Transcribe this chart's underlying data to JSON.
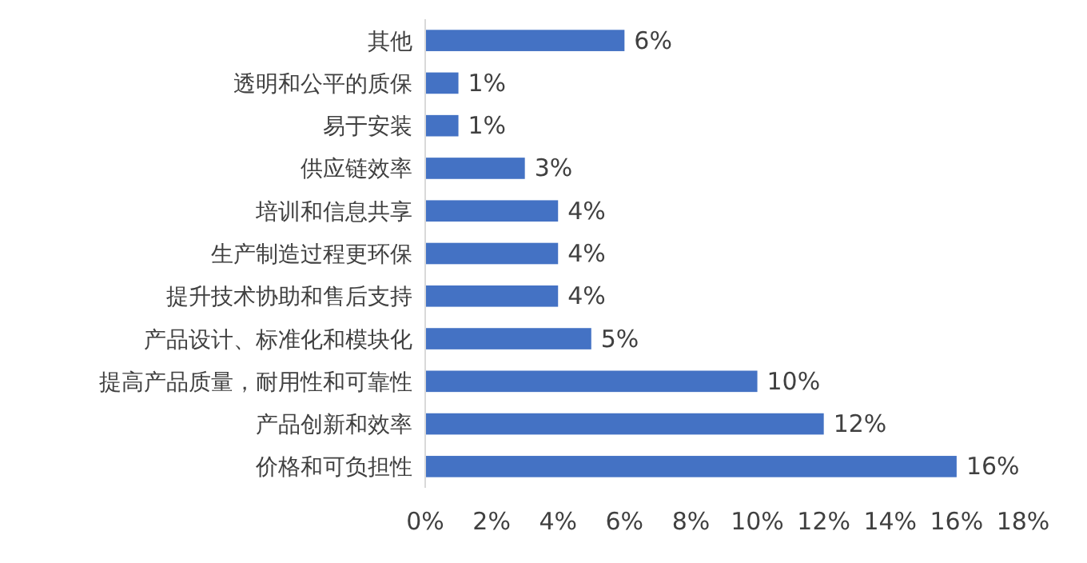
{
  "chart_data": {
    "type": "bar",
    "orientation": "horizontal",
    "categories": [
      "其他",
      "透明和公平的质保",
      "易于安装",
      "供应链效率",
      "培训和信息共享",
      "生产制造过程更环保",
      "提升技术协助和售后支持",
      "产品设计、标准化和模块化",
      "提高产品质量，耐用性和可靠性",
      "产品创新和效率",
      "价格和可负担性"
    ],
    "values": [
      6,
      1,
      1,
      3,
      4,
      4,
      4,
      5,
      10,
      12,
      16
    ],
    "value_labels": [
      "6%",
      "1%",
      "1%",
      "3%",
      "4%",
      "4%",
      "4%",
      "5%",
      "10%",
      "12%",
      "16%"
    ],
    "color": "#4472c4",
    "xlim": [
      0,
      18
    ],
    "xticks": [
      {
        "value": 0,
        "label": "0%"
      },
      {
        "value": 2,
        "label": "2%"
      },
      {
        "value": 4,
        "label": "4%"
      },
      {
        "value": 6,
        "label": "6%"
      },
      {
        "value": 8,
        "label": "8%"
      },
      {
        "value": 10,
        "label": "10%"
      },
      {
        "value": 12,
        "label": "12%"
      },
      {
        "value": 14,
        "label": "14%"
      },
      {
        "value": 16,
        "label": "16%"
      },
      {
        "value": 18,
        "label": "18%"
      }
    ],
    "grid": false
  }
}
